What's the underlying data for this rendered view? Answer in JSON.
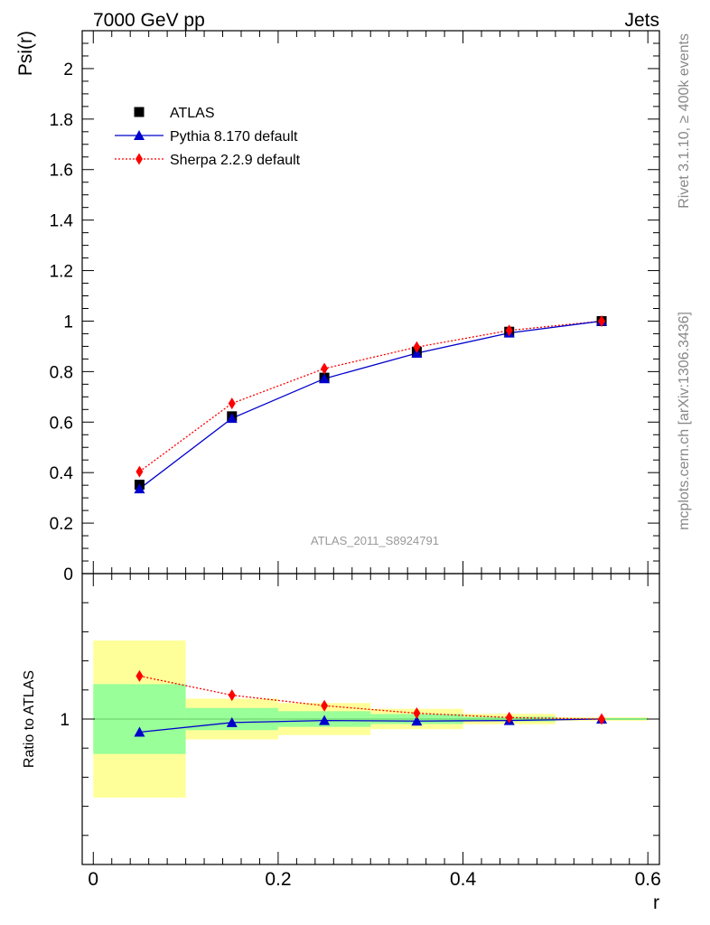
{
  "header": {
    "left": "7000 GeV pp",
    "right": "Jets"
  },
  "side_labels": {
    "rivet": "Rivet 3.1.10, ≥ 400k events",
    "mcplots": "mcplots.cern.ch [arXiv:1306.3436]"
  },
  "chart_data": [
    {
      "type": "line",
      "ylabel": "Psi(r)",
      "xlabel": "",
      "annotation": "ATLAS_2011_S8924791",
      "xlim": [
        -0.012,
        0.6125
      ],
      "ylim": [
        0,
        2.15
      ],
      "x_ticks": [
        0,
        0.2,
        0.4,
        0.6
      ],
      "y_ticks": [
        0,
        0.2,
        0.4,
        0.6,
        0.8,
        1,
        1.2,
        1.4,
        1.6,
        1.8,
        2
      ],
      "y_tick_labels": [
        "0",
        "0.2",
        "0.4",
        "0.6",
        "0.8",
        "1",
        "1.2",
        "1.4",
        "1.6",
        "1.8",
        "2"
      ],
      "legend_position": "top-left",
      "x": [
        0.05,
        0.15,
        0.25,
        0.35,
        0.45,
        0.55
      ],
      "series": [
        {
          "name": "ATLAS",
          "marker": "square",
          "color": "#000000",
          "values": [
            0.352,
            0.623,
            0.776,
            0.879,
            0.958,
            1.0
          ]
        },
        {
          "name": "Pythia 8.170 default",
          "marker": "triangle",
          "color": "#0000cc",
          "line": "solid",
          "values": [
            0.336,
            0.615,
            0.772,
            0.873,
            0.953,
            1.0
          ]
        },
        {
          "name": "Sherpa 2.2.9 default",
          "marker": "diamond",
          "color": "#ff0000",
          "line": "dotted",
          "values": [
            0.404,
            0.674,
            0.812,
            0.897,
            0.963,
            1.0
          ]
        }
      ]
    },
    {
      "type": "line",
      "ylabel": "Ratio to ATLAS",
      "xlabel": "r",
      "xlim": [
        -0.012,
        0.6125
      ],
      "ylim": [
        0.5,
        1.5
      ],
      "x_ticks": [
        0,
        0.2,
        0.4,
        0.6
      ],
      "x_tick_labels": [
        "0",
        "0.2",
        "0.4",
        "0.6"
      ],
      "y_ticks": [
        1
      ],
      "y_tick_labels": [
        "1"
      ],
      "bin_edges": [
        0,
        0.1,
        0.2,
        0.3,
        0.4,
        0.5,
        0.6
      ],
      "green_band": {
        "color": "#99ff99",
        "low": [
          0.88,
          0.962,
          0.973,
          0.983,
          0.992,
          0.997
        ],
        "high": [
          1.12,
          1.038,
          1.027,
          1.017,
          1.008,
          1.003
        ]
      },
      "yellow_band": {
        "color": "#ffff99",
        "low": [
          0.73,
          0.93,
          0.945,
          0.965,
          0.982,
          0.994
        ],
        "high": [
          1.27,
          1.07,
          1.055,
          1.035,
          1.018,
          1.006
        ]
      },
      "x": [
        0.05,
        0.15,
        0.25,
        0.35,
        0.45,
        0.55
      ],
      "series": [
        {
          "name": "Pythia 8.170 default",
          "marker": "triangle",
          "color": "#0000cc",
          "values": [
            0.955,
            0.988,
            0.995,
            0.993,
            0.995,
            1.0
          ]
        },
        {
          "name": "Sherpa 2.2.9 default",
          "marker": "diamond",
          "color": "#ff0000",
          "values": [
            1.148,
            1.082,
            1.046,
            1.02,
            1.005,
            1.0
          ]
        }
      ]
    }
  ]
}
